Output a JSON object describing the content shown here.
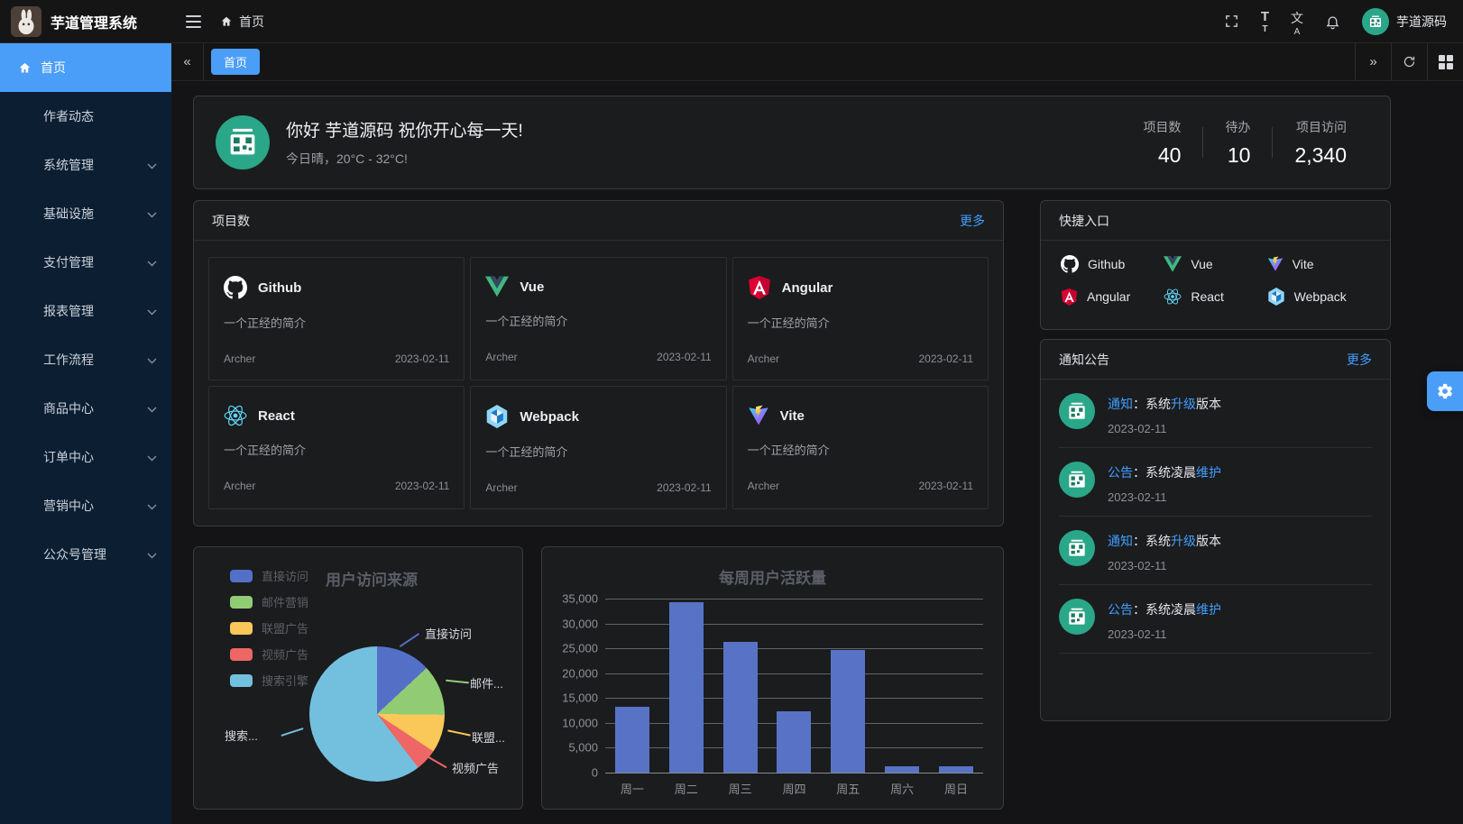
{
  "colors": {
    "accent": "#4a9ef8",
    "link": "#409eff",
    "avatar_green": "#2aa788",
    "sidebar_bg": "#0b1e32",
    "bar_color": "#5873c6"
  },
  "app": {
    "title": "芋道管理系统"
  },
  "header": {
    "breadcrumb_home": "首页",
    "user_name": "芋道源码"
  },
  "tabbar": {
    "active_tab": "首页"
  },
  "sidebar": {
    "items": [
      {
        "label": "首页",
        "active": true,
        "has_children": false
      },
      {
        "label": "作者动态",
        "active": false,
        "has_children": false
      },
      {
        "label": "系统管理",
        "active": false,
        "has_children": true
      },
      {
        "label": "基础设施",
        "active": false,
        "has_children": true
      },
      {
        "label": "支付管理",
        "active": false,
        "has_children": true
      },
      {
        "label": "报表管理",
        "active": false,
        "has_children": true
      },
      {
        "label": "工作流程",
        "active": false,
        "has_children": true
      },
      {
        "label": "商品中心",
        "active": false,
        "has_children": true
      },
      {
        "label": "订单中心",
        "active": false,
        "has_children": true
      },
      {
        "label": "营销中心",
        "active": false,
        "has_children": true
      },
      {
        "label": "公众号管理",
        "active": false,
        "has_children": true
      }
    ]
  },
  "welcome": {
    "greeting": "你好 芋道源码 祝你开心每一天!",
    "weather": "今日晴，20°C - 32°C!",
    "stats": [
      {
        "label": "项目数",
        "value": "40"
      },
      {
        "label": "待办",
        "value": "10"
      },
      {
        "label": "项目访问",
        "value": "2,340"
      }
    ]
  },
  "projects": {
    "title": "项目数",
    "more": "更多",
    "items": [
      {
        "name": "Github",
        "icon": "github-icon",
        "desc": "一个正经的简介",
        "author": "Archer",
        "date": "2023-02-11"
      },
      {
        "name": "Vue",
        "icon": "vue-icon",
        "desc": "一个正经的简介",
        "author": "Archer",
        "date": "2023-02-11"
      },
      {
        "name": "Angular",
        "icon": "angular-icon",
        "desc": "一个正经的简介",
        "author": "Archer",
        "date": "2023-02-11"
      },
      {
        "name": "React",
        "icon": "react-icon",
        "desc": "一个正经的简介",
        "author": "Archer",
        "date": "2023-02-11"
      },
      {
        "name": "Webpack",
        "icon": "webpack-icon",
        "desc": "一个正经的简介",
        "author": "Archer",
        "date": "2023-02-11"
      },
      {
        "name": "Vite",
        "icon": "vite-icon",
        "desc": "一个正经的简介",
        "author": "Archer",
        "date": "2023-02-11"
      }
    ]
  },
  "shortcuts": {
    "title": "快捷入口",
    "items": [
      {
        "label": "Github",
        "icon": "github-icon"
      },
      {
        "label": "Vue",
        "icon": "vue-icon"
      },
      {
        "label": "Vite",
        "icon": "vite-icon"
      },
      {
        "label": "Angular",
        "icon": "angular-icon"
      },
      {
        "label": "React",
        "icon": "react-icon"
      },
      {
        "label": "Webpack",
        "icon": "webpack-icon"
      }
    ]
  },
  "notices": {
    "title": "通知公告",
    "more": "更多",
    "items": [
      {
        "tag": "通知",
        "pre": "：系统",
        "em": "升级",
        "post": "版本",
        "date": "2023-02-11"
      },
      {
        "tag": "公告",
        "pre": "：系统凌晨",
        "em": "维护",
        "post": "",
        "date": "2023-02-11"
      },
      {
        "tag": "通知",
        "pre": "：系统",
        "em": "升级",
        "post": "版本",
        "date": "2023-02-11"
      },
      {
        "tag": "公告",
        "pre": "：系统凌晨",
        "em": "维护",
        "post": "",
        "date": "2023-02-11"
      }
    ]
  },
  "chart_data": [
    {
      "type": "pie",
      "title": "用户访问来源",
      "legend_position": "top-left",
      "series": [
        {
          "name": "直接访问",
          "value": 335,
          "color": "#5470c6"
        },
        {
          "name": "邮件营销",
          "value": 310,
          "color": "#91cc75"
        },
        {
          "name": "联盟广告",
          "value": 234,
          "color": "#fac858"
        },
        {
          "name": "视频广告",
          "value": 135,
          "color": "#ee6666"
        },
        {
          "name": "搜索引擎",
          "value": 1548,
          "color": "#73c0de"
        }
      ],
      "display_labels": [
        "直接访问",
        "邮件...",
        "联盟...",
        "视频广告",
        "搜索..."
      ]
    },
    {
      "type": "bar",
      "title": "每周用户活跃量",
      "categories": [
        "周一",
        "周二",
        "周三",
        "周四",
        "周五",
        "周六",
        "周日"
      ],
      "values": [
        13200,
        34300,
        26300,
        12300,
        24700,
        1300,
        1300
      ],
      "ylim": [
        0,
        35000
      ],
      "ytick_step": 5000,
      "bar_color": "#5873c6",
      "grid": true
    }
  ]
}
